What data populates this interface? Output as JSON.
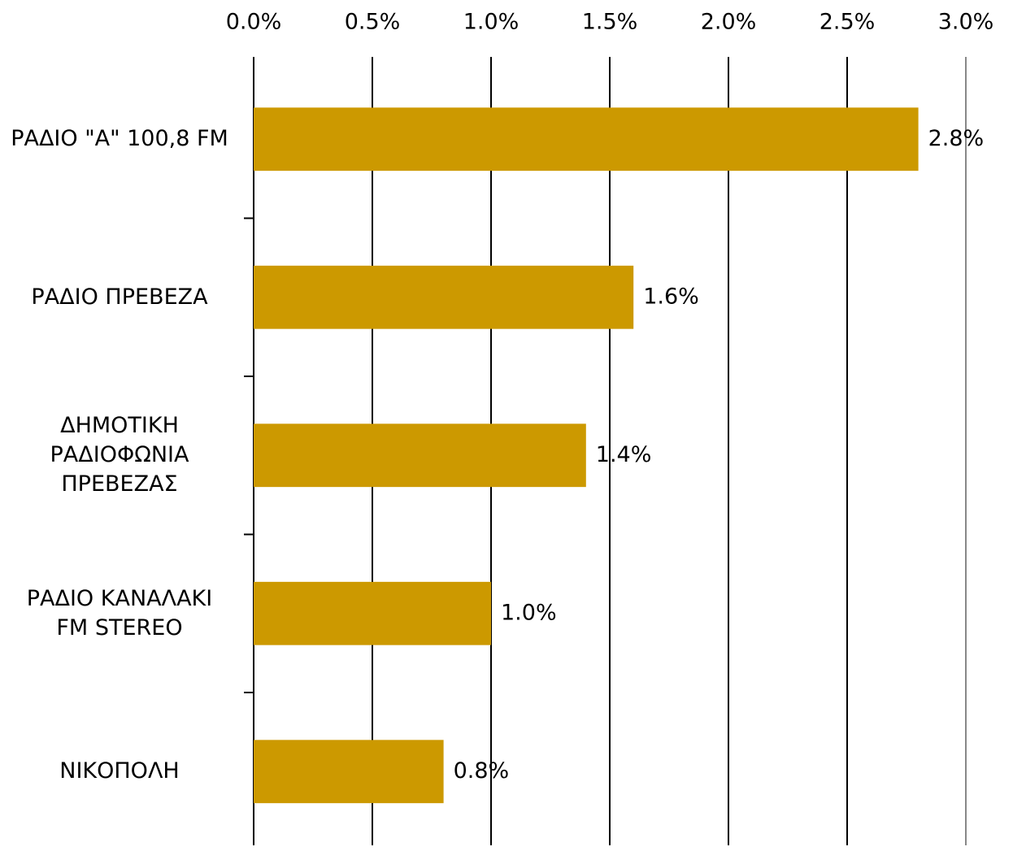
{
  "chart_data": {
    "type": "bar",
    "orientation": "horizontal",
    "categories": [
      "ΡΑΔΙΟ \"Α\" 100,8 FM",
      "ΡΑΔΙΟ ΠΡΕΒΕΖΑ",
      "ΔΗΜΟΤΙΚΗ ΡΑΔΙΟΦΩΝΙΑ ΠΡΕΒΕΖΑΣ",
      "ΡΑΔΙΟ ΚΑΝΑΛΑΚΙ FM STEREO",
      "ΝΙΚΟΠΟΛΗ"
    ],
    "values": [
      2.8,
      1.6,
      1.4,
      1.0,
      0.8
    ],
    "value_labels": [
      "2.8%",
      "1.6%",
      "1.4%",
      "1.0%",
      "0.8%"
    ],
    "color": "#cc9900",
    "xlim": [
      0,
      3
    ],
    "xticks": [
      {
        "value": 0,
        "label": "0.0%"
      },
      {
        "value": 0.5,
        "label": "0.5%"
      },
      {
        "value": 1,
        "label": "1.0%"
      },
      {
        "value": 1.5,
        "label": "1.5%"
      },
      {
        "value": 2,
        "label": "2.0%"
      },
      {
        "value": 2.5,
        "label": "2.5%"
      },
      {
        "value": 3,
        "label": "3.0%"
      }
    ],
    "grid": true
  }
}
